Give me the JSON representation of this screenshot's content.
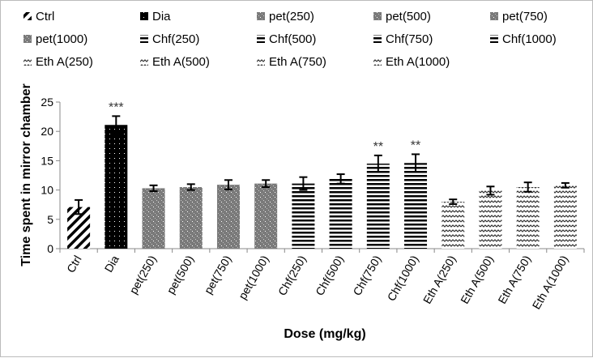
{
  "chart_data": {
    "type": "bar",
    "title": "",
    "xlabel": "Dose (mg/kg)",
    "ylabel": "Time spent in mirror chamber",
    "ylim": [
      0,
      25
    ],
    "yticks": [
      0,
      5,
      10,
      15,
      20,
      25
    ],
    "grid": false,
    "legend_placement": "top",
    "categories": [
      "Ctrl",
      "Dia",
      "pet(250)",
      "pet(500)",
      "pet(750)",
      "pet(1000)",
      "Chf(250)",
      "Chf(500)",
      "Chf(750)",
      "Chf(1000)",
      "Eth A(250)",
      "Eth A(500)",
      "Eth A(750)",
      "Eth A(1000)"
    ],
    "values": [
      7.1,
      21.1,
      10.3,
      10.5,
      10.9,
      11.1,
      11.1,
      11.9,
      14.5,
      14.6,
      8.0,
      9.9,
      10.5,
      10.8
    ],
    "errors": [
      1.2,
      1.5,
      0.5,
      0.5,
      0.8,
      0.6,
      1.1,
      0.8,
      1.4,
      1.5,
      0.4,
      0.7,
      0.8,
      0.4
    ],
    "annotations": [
      "",
      "***",
      "",
      "",
      "",
      "",
      "",
      "",
      "**",
      "**",
      "",
      "",
      "",
      ""
    ],
    "patterns": [
      "diag",
      "dots-dark",
      "check",
      "check",
      "check",
      "check",
      "hlines",
      "hlines",
      "hlines",
      "hlines",
      "wave",
      "wave",
      "wave",
      "wave"
    ]
  }
}
